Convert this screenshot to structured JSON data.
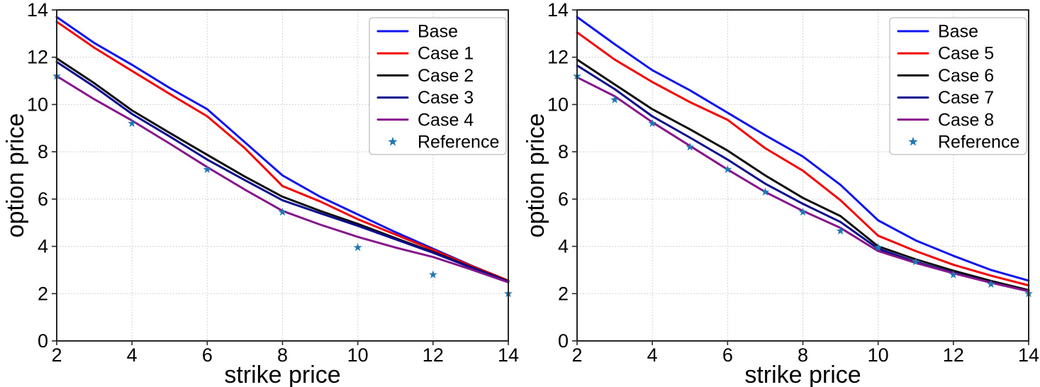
{
  "figure": {
    "background": "#ffffff",
    "grid_color": "#c9c9c9",
    "spine_color": "#262626",
    "tick_color": "#262626",
    "text_color": "#000000",
    "legend_border_color": "#c9c9c9",
    "legend_background": "#ffffff"
  },
  "chart_data": [
    {
      "type": "line",
      "panel": "left",
      "title": "",
      "xlabel": "strike price",
      "ylabel": "option price",
      "xlim": [
        2,
        14
      ],
      "ylim": [
        0,
        14
      ],
      "x_ticks": [
        2,
        4,
        6,
        8,
        10,
        12,
        14
      ],
      "y_ticks": [
        0,
        2,
        4,
        6,
        8,
        10,
        12,
        14
      ],
      "grid": true,
      "grid_style": "dotted",
      "legend_position": "upper right",
      "x": [
        2,
        3,
        4,
        5,
        6,
        7,
        8,
        9,
        10,
        11,
        12,
        13,
        14
      ],
      "series": [
        {
          "name": "Base",
          "color": "#0f14f0",
          "values": [
            13.7,
            12.6,
            11.68,
            10.7,
            9.8,
            8.4,
            7.0,
            6.1,
            5.35,
            4.6,
            3.9,
            3.2,
            2.55
          ]
        },
        {
          "name": "Case 1",
          "color": "#f40000",
          "values": [
            13.5,
            12.4,
            11.42,
            10.45,
            9.5,
            8.15,
            6.55,
            5.9,
            5.15,
            4.5,
            3.85,
            3.18,
            2.55
          ]
        },
        {
          "name": "Case 2",
          "color": "#0d0d0d",
          "values": [
            11.95,
            10.9,
            9.75,
            8.8,
            7.87,
            6.95,
            6.1,
            5.5,
            4.95,
            4.35,
            3.76,
            3.13,
            2.52
          ]
        },
        {
          "name": "Case 3",
          "color": "#0b0b8f",
          "values": [
            11.8,
            10.75,
            9.6,
            8.65,
            7.67,
            6.8,
            5.95,
            5.4,
            4.87,
            4.3,
            3.73,
            3.11,
            2.5
          ]
        },
        {
          "name": "Case 4",
          "color": "#87158c",
          "values": [
            11.2,
            10.22,
            9.32,
            8.35,
            7.35,
            6.4,
            5.5,
            4.92,
            4.4,
            3.95,
            3.55,
            3.03,
            2.48
          ]
        }
      ],
      "reference": {
        "name": "Reference",
        "marker": "star",
        "color": "#1f77b4",
        "points": [
          [
            2,
            11.2
          ],
          [
            4,
            9.2
          ],
          [
            6,
            7.25
          ],
          [
            8,
            5.45
          ],
          [
            10,
            3.95
          ],
          [
            12,
            2.8
          ],
          [
            14,
            2.0
          ]
        ]
      }
    },
    {
      "type": "line",
      "panel": "right",
      "title": "",
      "xlabel": "strike price",
      "ylabel": "option price",
      "xlim": [
        2,
        14
      ],
      "ylim": [
        0,
        14
      ],
      "x_ticks": [
        2,
        4,
        6,
        8,
        10,
        12,
        14
      ],
      "y_ticks": [
        0,
        2,
        4,
        6,
        8,
        10,
        12,
        14
      ],
      "grid": true,
      "grid_style": "dotted",
      "legend_position": "upper right",
      "x": [
        2,
        3,
        4,
        5,
        6,
        7,
        8,
        9,
        10,
        11,
        12,
        13,
        14
      ],
      "series": [
        {
          "name": "Base",
          "color": "#0f14f0",
          "values": [
            13.7,
            12.55,
            11.45,
            10.6,
            9.65,
            8.7,
            7.8,
            6.6,
            5.1,
            4.25,
            3.6,
            3.0,
            2.55
          ]
        },
        {
          "name": "Case 5",
          "color": "#f40000",
          "values": [
            13.05,
            11.9,
            10.95,
            10.1,
            9.35,
            8.15,
            7.2,
            5.95,
            4.45,
            3.8,
            3.22,
            2.76,
            2.35
          ]
        },
        {
          "name": "Case 6",
          "color": "#0d0d0d",
          "values": [
            11.9,
            10.85,
            9.8,
            8.95,
            8.05,
            7.0,
            6.05,
            5.28,
            4.0,
            3.45,
            2.97,
            2.54,
            2.15
          ]
        },
        {
          "name": "Case 7",
          "color": "#0b0b8f",
          "values": [
            11.65,
            10.65,
            9.5,
            8.6,
            7.67,
            6.65,
            5.8,
            5.03,
            3.9,
            3.34,
            2.88,
            2.47,
            2.1
          ]
        },
        {
          "name": "Case 8",
          "color": "#87158c",
          "values": [
            11.15,
            10.35,
            9.25,
            8.25,
            7.25,
            6.3,
            5.5,
            4.78,
            3.8,
            3.3,
            2.86,
            2.46,
            2.1
          ]
        }
      ],
      "reference": {
        "name": "Reference",
        "marker": "star",
        "color": "#1f77b4",
        "points": [
          [
            2,
            11.2
          ],
          [
            3,
            10.2
          ],
          [
            4,
            9.2
          ],
          [
            5,
            8.2
          ],
          [
            6,
            7.25
          ],
          [
            7,
            6.3
          ],
          [
            8,
            5.45
          ],
          [
            9,
            4.65
          ],
          [
            10,
            3.95
          ],
          [
            11,
            3.35
          ],
          [
            12,
            2.8
          ],
          [
            13,
            2.4
          ],
          [
            14,
            2.0
          ]
        ]
      }
    }
  ]
}
